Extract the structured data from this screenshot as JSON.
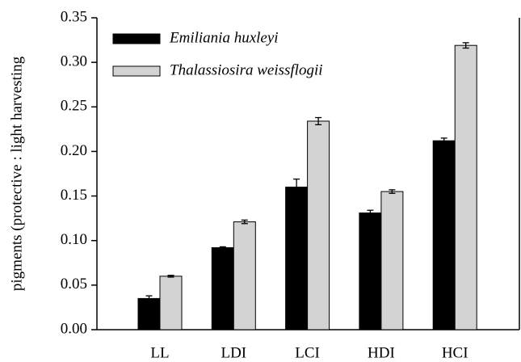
{
  "chart_data": {
    "type": "bar",
    "y_label": "pigments (protective : light harvesting",
    "categories": [
      "LL",
      "LDI",
      "LCI",
      "HDI",
      "HCI"
    ],
    "series": [
      {
        "name": "Emiliania huxleyi",
        "color": "#000000",
        "values": [
          0.035,
          0.092,
          0.16,
          0.131,
          0.212
        ],
        "errors": [
          0.003,
          0.001,
          0.009,
          0.003,
          0.003
        ]
      },
      {
        "name": "Thalassiosira weissflogii",
        "color": "#d3d3d3",
        "values": [
          0.06,
          0.121,
          0.234,
          0.155,
          0.319
        ],
        "errors": [
          0.001,
          0.002,
          0.004,
          0.002,
          0.003
        ]
      }
    ],
    "ylim": [
      0,
      0.35
    ],
    "yticks": [
      {
        "value": 0,
        "label": "0.00"
      },
      {
        "value": 0.05,
        "label": "0.05"
      },
      {
        "value": 0.1,
        "label": "0.10"
      },
      {
        "value": 0.15,
        "label": "0.15"
      },
      {
        "value": 0.2,
        "label": "0.20"
      },
      {
        "value": 0.25,
        "label": "0.25"
      },
      {
        "value": 0.3,
        "label": "0.30"
      },
      {
        "value": 0.35,
        "label": "0.35"
      }
    ],
    "legend": "upper left"
  }
}
